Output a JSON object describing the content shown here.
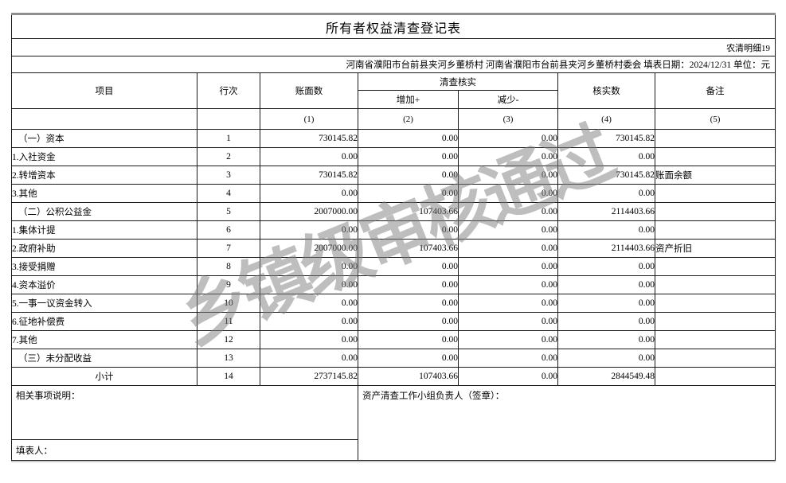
{
  "meta": {
    "title": "所有者权益清查登记表",
    "form_code": "农清明细19",
    "info_line": "河南省濮阳市台前县夹河乡董桥村 河南省濮阳市台前县夹河乡董桥村委会 填表日期：2024/12/31 单位：元",
    "watermark": "乡镇级审核通过"
  },
  "header": {
    "item": "项目",
    "line_no": "行次",
    "book_value": "账面数",
    "verify_group": "清查核实",
    "increase": "增加+",
    "decrease": "减少-",
    "verified": "核实数",
    "remark": "备注",
    "col_nums": [
      "(1)",
      "(2)",
      "(3)",
      "(4)",
      "(5)"
    ]
  },
  "rows": [
    {
      "item": "（一）资本",
      "line": "1",
      "book": "730145.82",
      "inc": "0.00",
      "dec": "0.00",
      "verified": "730145.82",
      "remark": ""
    },
    {
      "item": "1.入社资金",
      "line": "2",
      "book": "0.00",
      "inc": "0.00",
      "dec": "0.00",
      "verified": "0.00",
      "remark": ""
    },
    {
      "item": "2.转增资本",
      "line": "3",
      "book": "730145.82",
      "inc": "0.00",
      "dec": "0.00",
      "verified": "730145.82",
      "remark": "账面余额"
    },
    {
      "item": "3.其他",
      "line": "4",
      "book": "0.00",
      "inc": "0.00",
      "dec": "0.00",
      "verified": "0.00",
      "remark": ""
    },
    {
      "item": "（二）公积公益金",
      "line": "5",
      "book": "2007000.00",
      "inc": "107403.66",
      "dec": "0.00",
      "verified": "2114403.66",
      "remark": ""
    },
    {
      "item": "1.集体计提",
      "line": "6",
      "book": "0.00",
      "inc": "0.00",
      "dec": "0.00",
      "verified": "0.00",
      "remark": ""
    },
    {
      "item": "2.政府补助",
      "line": "7",
      "book": "2007000.00",
      "inc": "107403.66",
      "dec": "0.00",
      "verified": "2114403.66",
      "remark": "资产折旧"
    },
    {
      "item": "3.接受捐赠",
      "line": "8",
      "book": "0.00",
      "inc": "0.00",
      "dec": "0.00",
      "verified": "0.00",
      "remark": ""
    },
    {
      "item": "4.资本溢价",
      "line": "9",
      "book": "0.00",
      "inc": "0.00",
      "dec": "0.00",
      "verified": "0.00",
      "remark": ""
    },
    {
      "item": "5.一事一议资金转入",
      "line": "10",
      "book": "0.00",
      "inc": "0.00",
      "dec": "0.00",
      "verified": "0.00",
      "remark": ""
    },
    {
      "item": "6.征地补偿费",
      "line": "11",
      "book": "0.00",
      "inc": "0.00",
      "dec": "0.00",
      "verified": "0.00",
      "remark": ""
    },
    {
      "item": "7.其他",
      "line": "12",
      "book": "0.00",
      "inc": "0.00",
      "dec": "0.00",
      "verified": "0.00",
      "remark": ""
    },
    {
      "item": "（三）未分配收益",
      "line": "13",
      "book": "0.00",
      "inc": "0.00",
      "dec": "0.00",
      "verified": "0.00",
      "remark": ""
    },
    {
      "item": "小计",
      "line": "14",
      "book": "2737145.82",
      "inc": "107403.66",
      "dec": "0.00",
      "verified": "2844549.48",
      "remark": ""
    }
  ],
  "footer": {
    "notes_label": "相关事项说明：",
    "signer_label": "资产清查工作小组负责人（签章）：",
    "preparer_label": "填表人："
  }
}
